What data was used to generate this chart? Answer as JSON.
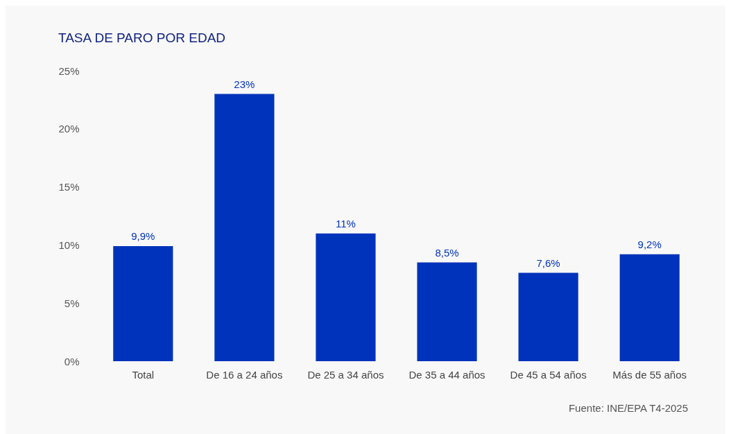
{
  "chart_data": {
    "type": "bar",
    "title": "TASA DE PARO POR EDAD",
    "categories": [
      "Total",
      "De 16 a 24 años",
      "De 25 a 34 años",
      "De 35 a 44 años",
      "De 45 a 54 años",
      "Más de 55 años"
    ],
    "values": [
      9.9,
      23,
      11,
      8.5,
      7.6,
      9.2
    ],
    "value_labels": [
      "9,9%",
      "23%",
      "11%",
      "8,5%",
      "7,6%",
      "9,2%"
    ],
    "color": "#0033bb",
    "ylim": [
      0,
      25
    ],
    "yticks": [
      {
        "value": 0,
        "label": "0%"
      },
      {
        "value": 5,
        "label": "5%"
      },
      {
        "value": 10,
        "label": "10%"
      },
      {
        "value": 15,
        "label": "15%"
      },
      {
        "value": 20,
        "label": "20%"
      },
      {
        "value": 25,
        "label": "25%"
      }
    ],
    "grid": false,
    "annotations": [
      "Fuente: INE/EPA T4-2025"
    ]
  }
}
